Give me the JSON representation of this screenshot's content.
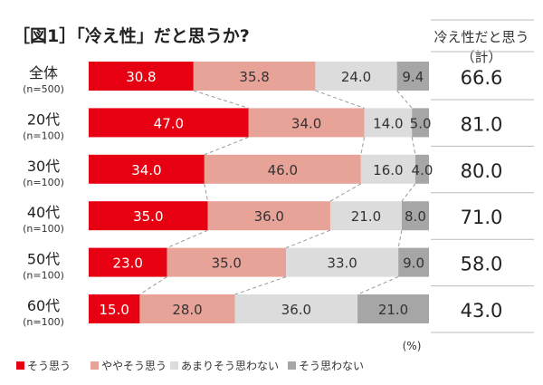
{
  "chart_data": {
    "type": "bar",
    "orientation": "horizontal-stacked-100",
    "title": "［図1］「冷え性」だと思うか?",
    "unit_label": "(%)",
    "categories": [
      {
        "label": "全体",
        "n": "(n=500)"
      },
      {
        "label": "20代",
        "n": "(n=100)"
      },
      {
        "label": "30代",
        "n": "(n=100)"
      },
      {
        "label": "40代",
        "n": "(n=100)"
      },
      {
        "label": "50代",
        "n": "(n=100)"
      },
      {
        "label": "60代",
        "n": "(n=100)"
      }
    ],
    "series": [
      {
        "name": "そう思う",
        "color": "#e60012",
        "text_color": "#ffffff",
        "values": [
          30.8,
          47.0,
          34.0,
          35.0,
          23.0,
          15.0
        ]
      },
      {
        "name": "ややそう思う",
        "color": "#e8a398",
        "text_color": "#333333",
        "values": [
          35.8,
          34.0,
          46.0,
          36.0,
          35.0,
          28.0
        ]
      },
      {
        "name": "あまりそう思わない",
        "color": "#dcdcdc",
        "text_color": "#333333",
        "values": [
          24.0,
          14.0,
          16.0,
          21.0,
          33.0,
          36.0
        ]
      },
      {
        "name": "そう思わない",
        "color": "#a6a6a6",
        "text_color": "#333333",
        "values": [
          9.4,
          5.0,
          4.0,
          8.0,
          9.0,
          21.0
        ]
      }
    ],
    "total_column": {
      "header_line1": "冷え性だと思う",
      "header_line2": "（計）",
      "values": [
        "66.6",
        "81.0",
        "80.0",
        "71.0",
        "58.0",
        "43.0"
      ]
    },
    "xlim": [
      0,
      100
    ],
    "connector_lines": "dashed",
    "legend_position": "bottom-left"
  }
}
